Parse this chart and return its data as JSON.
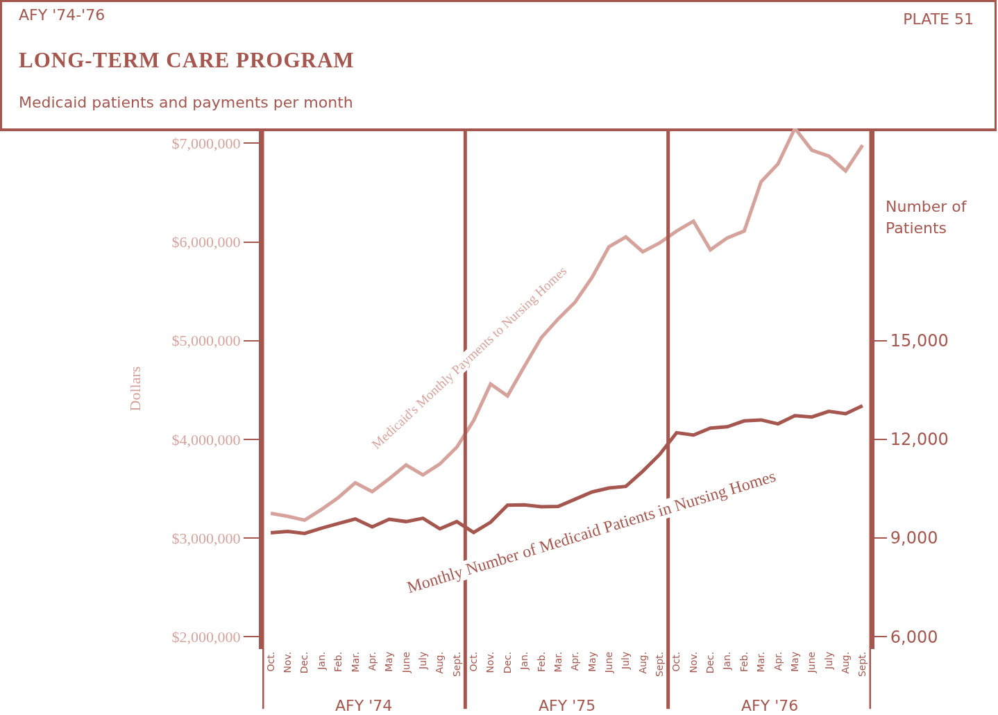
{
  "chart_data": {
    "type": "line",
    "title": "LONG-TERM CARE PROGRAM",
    "subtitle": "Medicaid patients and payments per month",
    "ylabel": "Dollars",
    "y2label": "Number of Patients",
    "annotations": [
      "AFY '74-'76",
      "PLATE 51",
      "AFY '74",
      "AFY '75",
      "AFY '76"
    ],
    "categories": [
      "Oct.",
      "Nov.",
      "Dec.",
      "Jan.",
      "Feb.",
      "Mar.",
      "Apr.",
      "May",
      "June",
      "July",
      "Aug.",
      "Sept.",
      "Oct.",
      "Nov.",
      "Dec.",
      "Jan.",
      "Feb.",
      "Mar.",
      "Apr.",
      "May",
      "June",
      "July",
      "Aug.",
      "Sept.",
      "Oct.",
      "Nov.",
      "Dec.",
      "Jan.",
      "Feb.",
      "Mar.",
      "Apr.",
      "May",
      "June",
      "July",
      "Aug.",
      "Sept."
    ],
    "ylim": [
      1875000,
      7150000
    ],
    "yticks": [
      {
        "value": 2000000,
        "label": "$2,000,000"
      },
      {
        "value": 3000000,
        "label": "$3,000,000"
      },
      {
        "value": 4000000,
        "label": "$4,000,000"
      },
      {
        "value": 5000000,
        "label": "$5,000,000"
      },
      {
        "value": 6000000,
        "label": "$6,000,000"
      },
      {
        "value": 7000000,
        "label": "$7,000,000"
      }
    ],
    "y2lim": [
      5625,
      21450
    ],
    "y2ticks": [
      {
        "value": 6000,
        "label": "6,000"
      },
      {
        "value": 9000,
        "label": "9,000"
      },
      {
        "value": 12000,
        "label": "12,000"
      },
      {
        "value": 15000,
        "label": "15,000"
      }
    ],
    "grid": false,
    "legend": false,
    "marker": "none",
    "line_style": "solid",
    "series": [
      {
        "name": "Medicaid's Monthly Payments to Nursing Homes",
        "color": "#d6a29c",
        "values": [
          3250000,
          3220000,
          3180000,
          3290000,
          3410000,
          3560000,
          3470000,
          3600000,
          3740000,
          3640000,
          3750000,
          3920000,
          4190000,
          4560000,
          4440000,
          4740000,
          5030000,
          5220000,
          5390000,
          5640000,
          5950000,
          6050000,
          5900000,
          5990000,
          6110000,
          6210000,
          5920000,
          6040000,
          6110000,
          6610000,
          6790000,
          7150000,
          6930000,
          6870000,
          6720000,
          6980000
        ]
      },
      {
        "name": "Monthly Number of Medicaid Patients in Nursing Homes",
        "color": "#a5574f",
        "axis": "y2",
        "values": [
          9160,
          9200,
          9140,
          9300,
          9440,
          9580,
          9340,
          9570,
          9500,
          9600,
          9280,
          9500,
          9170,
          9480,
          10000,
          10010,
          9950,
          9960,
          10180,
          10400,
          10520,
          10570,
          11030,
          11540,
          12200,
          12130,
          12340,
          12380,
          12560,
          12590,
          12470,
          12720,
          12680,
          12850,
          12780,
          13020
        ]
      }
    ]
  }
}
